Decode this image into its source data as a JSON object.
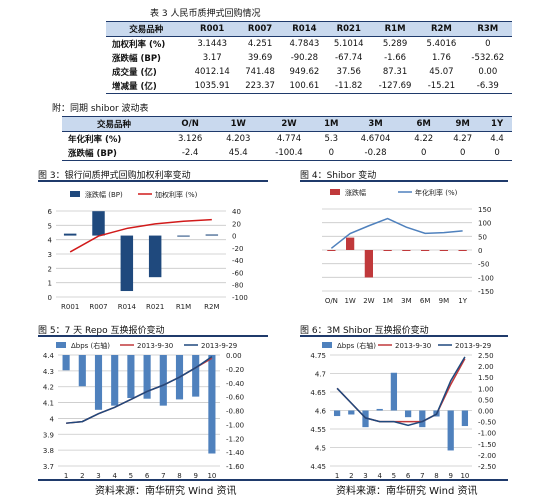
{
  "table3": {
    "title": "表 3 人民币质押式回购情况",
    "header": [
      "交易品种",
      "R001",
      "R007",
      "R014",
      "R021",
      "R1M",
      "R2M",
      "R3M"
    ],
    "rows": [
      [
        "加权利率 (%)",
        "3.1443",
        "4.251",
        "4.7843",
        "5.1014",
        "5.289",
        "5.4016",
        "0"
      ],
      [
        "涨跌幅 (BP)",
        "3.17",
        "39.69",
        "-90.28",
        "-67.74",
        "-1.66",
        "1.76",
        "-532.62"
      ],
      [
        "成交量 (亿)",
        "4012.14",
        "741.48",
        "949.62",
        "37.56",
        "87.31",
        "45.07",
        "0.00"
      ],
      [
        "增减量 (亿)",
        "1035.91",
        "223.37",
        "100.61",
        "-11.82",
        "-127.69",
        "-15.21",
        "-6.39"
      ]
    ]
  },
  "table_shibor": {
    "title": "附：同期 shibor 波动表",
    "header": [
      "交易品种",
      "O/N",
      "1W",
      "2W",
      "1M",
      "3M",
      "6M",
      "9M",
      "1Y"
    ],
    "rows": [
      [
        "年化利率 (%)",
        "3.126",
        "4.203",
        "4.774",
        "5.3",
        "4.6704",
        "4.22",
        "4.27",
        "4.4"
      ],
      [
        "涨跌幅 (BP)",
        "-2.4",
        "45.4",
        "-100.4",
        "0",
        "-0.28",
        "0",
        "0",
        "0"
      ]
    ]
  },
  "chart_data": [
    {
      "id": "fig3",
      "type": "bar",
      "title": "图 3：银行间质押式回购加权利率变动",
      "categories": [
        "R001",
        "R007",
        "R014",
        "R021",
        "R1M",
        "R2M"
      ],
      "legend": [
        "涨跌幅 (BP)",
        "加权利率 (%)"
      ],
      "series": [
        {
          "name": "涨跌幅 (BP)",
          "axis": "right",
          "kind": "bar",
          "color": "#1f497d",
          "values": [
            3.17,
            39.69,
            -90.28,
            -67.74,
            -1.66,
            1.76
          ]
        },
        {
          "name": "加权利率 (%)",
          "axis": "left",
          "kind": "line",
          "color": "#d11a1a",
          "values": [
            3.1443,
            4.251,
            4.7843,
            5.1014,
            5.289,
            5.4016
          ]
        }
      ],
      "yleft": {
        "min": 0,
        "max": 6,
        "ticks": [
          "0",
          "1",
          "2",
          "3",
          "4",
          "5",
          "6"
        ]
      },
      "yright": {
        "min": -100,
        "max": 40,
        "ticks": [
          "-100",
          "-80",
          "-60",
          "-40",
          "-20",
          "0",
          "20",
          "40"
        ]
      },
      "grid": true
    },
    {
      "id": "fig4",
      "type": "bar",
      "title": "图 4：Shibor 变动",
      "categories": [
        "O/N",
        "1W",
        "2W",
        "1M",
        "3M",
        "6M",
        "9M",
        "1Y"
      ],
      "legend": [
        "涨跌幅",
        "年化利率 (%)"
      ],
      "series": [
        {
          "name": "涨跌幅",
          "axis": "right",
          "kind": "bar",
          "color": "#c0393b",
          "values": [
            -2.4,
            45.4,
            -100.4,
            0,
            -0.28,
            0,
            0,
            0
          ]
        },
        {
          "name": "年化利率 (%)",
          "axis": "left",
          "kind": "line",
          "color": "#4f81bd",
          "values": [
            3.126,
            4.203,
            4.774,
            5.3,
            4.6704,
            4.22,
            4.27,
            4.4
          ]
        }
      ],
      "yleft": {
        "min": 0,
        "max": 6,
        "ticks": [
          "0",
          "1",
          "2",
          "3",
          "4",
          "5",
          "6"
        ]
      },
      "yright": {
        "min": -150,
        "max": 150,
        "ticks": [
          "-150",
          "-100",
          "-50",
          "0",
          "50",
          "100",
          "150"
        ]
      },
      "grid": true
    },
    {
      "id": "fig5",
      "type": "bar",
      "title": "图 5：7 天 Repo 互换报价变动",
      "categories": [
        "1",
        "2",
        "3",
        "4",
        "5",
        "6",
        "7",
        "8",
        "9",
        "10"
      ],
      "legend": [
        "Δbps (右轴)",
        "2013-9-30",
        "2013-9-29"
      ],
      "series": [
        {
          "name": "Δbps (右轴)",
          "axis": "right",
          "kind": "bar",
          "color": "#4f81bd",
          "values": [
            -0.22,
            -0.45,
            -0.79,
            -0.73,
            -0.62,
            -0.63,
            -0.73,
            -0.64,
            -0.6,
            -1.42
          ]
        },
        {
          "name": "2013-9-30",
          "axis": "left",
          "kind": "line",
          "color": "#c0393b",
          "values": [
            3.97,
            3.98,
            4.03,
            4.07,
            4.12,
            4.17,
            4.21,
            4.26,
            4.32,
            4.38
          ]
        },
        {
          "name": "2013-9-29",
          "axis": "left",
          "kind": "line",
          "color": "#1f497d",
          "values": [
            3.97,
            3.98,
            4.03,
            4.07,
            4.12,
            4.17,
            4.21,
            4.26,
            4.32,
            4.39
          ]
        }
      ],
      "yleft": {
        "min": 3.7,
        "max": 4.4,
        "ticks": [
          "3.7",
          "3.8",
          "3.9",
          "4",
          "4.1",
          "4.2",
          "4.3",
          "4.4"
        ]
      },
      "yright": {
        "min": -1.6,
        "max": 0,
        "ticks": [
          "-1.60",
          "-1.40",
          "-1.20",
          "-1.00",
          "-0.80",
          "-0.60",
          "-0.40",
          "-0.20",
          "0.00"
        ]
      },
      "grid": true
    },
    {
      "id": "fig6",
      "type": "bar",
      "title": "图 6：3M Shibor 互换报价变动",
      "categories": [
        "1",
        "2",
        "3",
        "4",
        "5",
        "6",
        "7",
        "8",
        "9",
        "10"
      ],
      "legend": [
        "Δbps (右轴)",
        "2013-9-30",
        "2013-9-29"
      ],
      "series": [
        {
          "name": "Δbps (右轴)",
          "axis": "right",
          "kind": "bar",
          "color": "#4f81bd",
          "values": [
            -0.25,
            -0.18,
            -0.75,
            0.07,
            1.7,
            -0.3,
            -0.75,
            -0.27,
            -1.8,
            -0.7
          ]
        },
        {
          "name": "2013-9-30",
          "axis": "left",
          "kind": "line",
          "color": "#c0393b",
          "values": [
            4.66,
            4.62,
            4.58,
            4.57,
            4.57,
            4.57,
            4.57,
            4.59,
            4.67,
            4.74
          ]
        },
        {
          "name": "2013-9-29",
          "axis": "left",
          "kind": "line",
          "color": "#1f497d",
          "values": [
            4.66,
            4.62,
            4.58,
            4.57,
            4.57,
            4.56,
            4.57,
            4.59,
            4.68,
            4.745
          ]
        }
      ],
      "yleft": {
        "min": 4.45,
        "max": 4.75,
        "ticks": [
          "4.45",
          "4.5",
          "4.55",
          "4.6",
          "4.65",
          "4.7",
          "4.75"
        ]
      },
      "yright": {
        "min": -2.5,
        "max": 2.5,
        "ticks": [
          "-2.50",
          "-2.00",
          "-1.50",
          "-1.00",
          "-0.50",
          "0.00",
          "0.50",
          "1.00",
          "1.50",
          "2.00",
          "2.50"
        ]
      },
      "grid": true
    }
  ],
  "footer": {
    "left": "资料来源：南华研究 Wind 资讯",
    "right": "资料来源：南华研究 Wind 资讯"
  }
}
